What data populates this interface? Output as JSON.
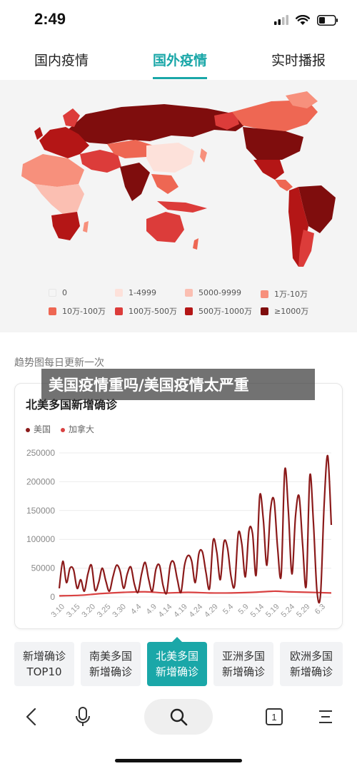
{
  "status_bar": {
    "time": "2:49",
    "icons": [
      "cellular-signal-icon",
      "wifi-icon",
      "battery-icon"
    ]
  },
  "tabs": [
    {
      "label": "国内疫情",
      "active": false
    },
    {
      "label": "国外疫情",
      "active": true
    },
    {
      "label": "实时播报",
      "active": false
    }
  ],
  "map": {
    "legend": [
      {
        "label": "0",
        "color": "#f5f5f5"
      },
      {
        "label": "1-4999",
        "color": "#fde1da"
      },
      {
        "label": "5000-9999",
        "color": "#fbbfb2"
      },
      {
        "label": "1万-10万",
        "color": "#f7907c"
      },
      {
        "label": "10万-100万",
        "color": "#ee6753"
      },
      {
        "label": "100万-500万",
        "color": "#dc3c3a"
      },
      {
        "label": "500万-1000万",
        "color": "#b41616"
      },
      {
        "label": "≥1000万",
        "color": "#7f0d0d"
      }
    ]
  },
  "trend_note": "趋势图每日更新一次",
  "overlay_banner": "美国疫情重吗/美国疫情太严重",
  "chart": {
    "title": "北美多国新增确诊",
    "accent_color": "#1aa7a8"
  },
  "chart_data": {
    "type": "line",
    "title": "北美多国新增确诊",
    "xlabel": "",
    "ylabel": "",
    "ylim": [
      0,
      250000
    ],
    "yticks": [
      "250000",
      "200000",
      "150000",
      "100000",
      "50000",
      "0"
    ],
    "xticks": [
      "3.10",
      "3.15",
      "3.20",
      "3.25",
      "3.30",
      "4.4",
      "4.9",
      "4.14",
      "4.19",
      "4.24",
      "4.29",
      "5.4",
      "5.9",
      "5.14",
      "5.19",
      "5.24",
      "5.29",
      "6.3"
    ],
    "grid": true,
    "legend_position": "top-left",
    "series": [
      {
        "name": "美国",
        "color": "#8b1a1a",
        "points": [
          [
            0,
            15000
          ],
          [
            1,
            62000
          ],
          [
            2,
            25000
          ],
          [
            3,
            50000
          ],
          [
            4,
            47000
          ],
          [
            5,
            15000
          ],
          [
            6,
            30000
          ],
          [
            7,
            10000
          ],
          [
            8,
            40000
          ],
          [
            9,
            55000
          ],
          [
            10,
            12000
          ],
          [
            11,
            25000
          ],
          [
            12,
            50000
          ],
          [
            13,
            28000
          ],
          [
            14,
            10000
          ],
          [
            15,
            35000
          ],
          [
            16,
            55000
          ],
          [
            17,
            45000
          ],
          [
            18,
            15000
          ],
          [
            19,
            40000
          ],
          [
            20,
            52000
          ],
          [
            21,
            22000
          ],
          [
            22,
            8000
          ],
          [
            23,
            40000
          ],
          [
            24,
            60000
          ],
          [
            25,
            30000
          ],
          [
            26,
            10000
          ],
          [
            27,
            48000
          ],
          [
            28,
            55000
          ],
          [
            29,
            20000
          ],
          [
            30,
            7000
          ],
          [
            31,
            55000
          ],
          [
            32,
            60000
          ],
          [
            33,
            30000
          ],
          [
            34,
            8000
          ],
          [
            35,
            55000
          ],
          [
            36,
            72000
          ],
          [
            37,
            62000
          ],
          [
            38,
            25000
          ],
          [
            39,
            75000
          ],
          [
            40,
            78000
          ],
          [
            41,
            42000
          ],
          [
            42,
            15000
          ],
          [
            43,
            98000
          ],
          [
            44,
            78000
          ],
          [
            45,
            30000
          ],
          [
            46,
            95000
          ],
          [
            47,
            85000
          ],
          [
            48,
            35000
          ],
          [
            49,
            20000
          ],
          [
            50,
            110000
          ],
          [
            51,
            92000
          ],
          [
            52,
            35000
          ],
          [
            53,
            115000
          ],
          [
            54,
            110000
          ],
          [
            55,
            38000
          ],
          [
            56,
            175000
          ],
          [
            57,
            135000
          ],
          [
            58,
            55000
          ],
          [
            59,
            150000
          ],
          [
            60,
            168000
          ],
          [
            61,
            85000
          ],
          [
            62,
            38000
          ],
          [
            63,
            220000
          ],
          [
            64,
            150000
          ],
          [
            65,
            40000
          ],
          [
            66,
            140000
          ],
          [
            67,
            175000
          ],
          [
            68,
            90000
          ],
          [
            69,
            20000
          ],
          [
            70,
            210000
          ],
          [
            71,
            130000
          ],
          [
            72,
            10000
          ],
          [
            73,
            5000
          ],
          [
            74,
            160000
          ],
          [
            75,
            245000
          ],
          [
            76,
            125000
          ]
        ]
      },
      {
        "name": "加拿大",
        "color": "#d94141",
        "points": [
          [
            0,
            2000
          ],
          [
            6,
            3000
          ],
          [
            12,
            6000
          ],
          [
            18,
            8000
          ],
          [
            24,
            9000
          ],
          [
            30,
            7000
          ],
          [
            36,
            8000
          ],
          [
            42,
            7000
          ],
          [
            48,
            7000
          ],
          [
            54,
            8000
          ],
          [
            60,
            10000
          ],
          [
            64,
            9000
          ],
          [
            70,
            8000
          ],
          [
            76,
            7000
          ]
        ]
      }
    ]
  },
  "region_tabs": [
    {
      "line1": "新增确诊",
      "line2": "TOP10",
      "active": false
    },
    {
      "line1": "南美多国",
      "line2": "新增确诊",
      "active": false
    },
    {
      "line1": "北美多国",
      "line2": "新增确诊",
      "active": true
    },
    {
      "line1": "亚洲多国",
      "line2": "新增确诊",
      "active": false
    },
    {
      "line1": "欧洲多国",
      "line2": "新增确诊",
      "active": false
    }
  ],
  "bottom_nav": {
    "items": [
      "back-icon",
      "microphone-icon",
      "search-icon",
      "tabs-count-icon",
      "menu-icon"
    ],
    "tabs_count": "1"
  }
}
